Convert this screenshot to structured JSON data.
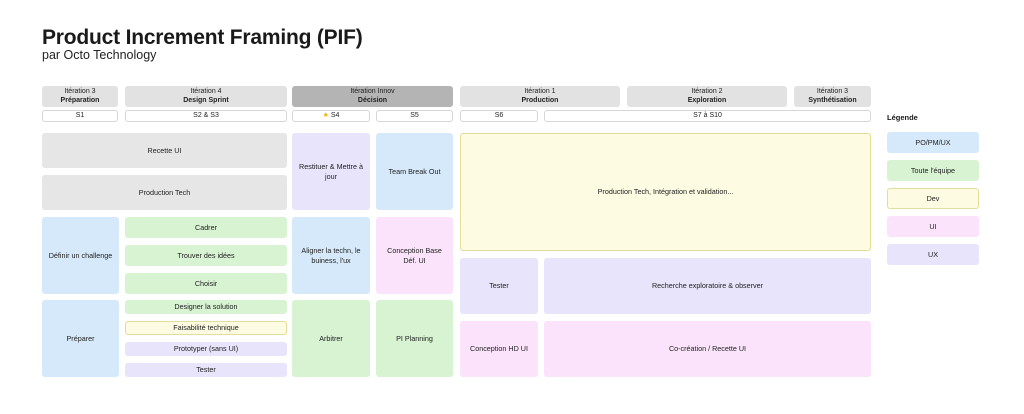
{
  "header": {
    "title": "Product Increment Framing (PIF)",
    "subtitle": "par Octo Technology"
  },
  "iterations": [
    {
      "line1": "Itération 3",
      "line2": "Préparation"
    },
    {
      "line1": "Itération 4",
      "line2": "Design Sprint"
    },
    {
      "line1": "Itération Innov",
      "line2": "Décision"
    },
    {
      "line1": "Itération 1",
      "line2": "Production"
    },
    {
      "line1": "Itération 2",
      "line2": "Exploration"
    },
    {
      "line1": "Itération 3",
      "line2": "Synthétisation"
    }
  ],
  "sprints": [
    {
      "label": "S1"
    },
    {
      "label": "S2 & S3"
    },
    {
      "label": "S4",
      "icon": "★"
    },
    {
      "label": "S5"
    },
    {
      "label": "S6"
    },
    {
      "label": "S7 à S10"
    }
  ],
  "cards": {
    "recette_ui": "Recette UI",
    "production_tech": "Production Tech",
    "definir_challenge": "Définir un challenge",
    "cadrer": "Cadrer",
    "trouver_idees": "Trouver des idées",
    "choisir": "Choisir",
    "preparer": "Préparer",
    "designer_solution": "Designer la solution",
    "faisabilite_technique": "Faisabilité technique",
    "prototyper": "Prototyper (sans UI)",
    "tester_s2": "Tester",
    "restituer": "Restituer & Mettre à jour",
    "team_break_out": "Team Break Out",
    "aligner": "Aligner la techn, le buiness, l'ux",
    "conception_base": "Conception Base Déf. UI",
    "arbitrer": "Arbitrer",
    "pi_planning": "PI Planning",
    "production_integration": "Production Tech, Intégration et validation...",
    "tester_s6": "Tester",
    "recherche": "Recherche exploratoire & observer",
    "conception_hd": "Conception HD UI",
    "cocreation": "Co-création / Recette UI"
  },
  "legend": {
    "title": "Légende",
    "items": [
      {
        "label": "PO/PM/UX",
        "color": "#d6e9fa"
      },
      {
        "label": "Toute l'équipe",
        "color": "#d7f3d2"
      },
      {
        "label": "Dev",
        "color": "#fdfbe2"
      },
      {
        "label": "UI",
        "color": "#fbe3fb"
      },
      {
        "label": "UX",
        "color": "#e7e4fb"
      }
    ]
  }
}
